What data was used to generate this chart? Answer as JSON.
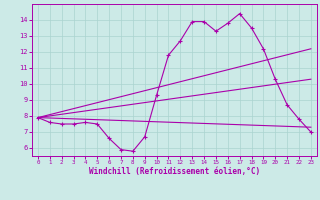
{
  "xlabel": "Windchill (Refroidissement éolien,°C)",
  "background_color": "#cceae7",
  "grid_color": "#aad4d0",
  "line_color": "#aa00aa",
  "xlim": [
    -0.5,
    23.5
  ],
  "ylim": [
    5.5,
    15.0
  ],
  "yticks": [
    6,
    7,
    8,
    9,
    10,
    11,
    12,
    13,
    14
  ],
  "xticks": [
    0,
    1,
    2,
    3,
    4,
    5,
    6,
    7,
    8,
    9,
    10,
    11,
    12,
    13,
    14,
    15,
    16,
    17,
    18,
    19,
    20,
    21,
    22,
    23
  ],
  "line1_x": [
    0,
    1,
    2,
    3,
    4,
    5,
    6,
    7,
    8,
    9,
    10,
    11,
    12,
    13,
    14,
    15,
    16,
    17,
    18,
    19,
    20,
    21,
    22,
    23
  ],
  "line1_y": [
    7.9,
    7.6,
    7.5,
    7.5,
    7.6,
    7.5,
    6.6,
    5.9,
    5.8,
    6.7,
    9.3,
    11.8,
    12.7,
    13.9,
    13.9,
    13.3,
    13.8,
    14.4,
    13.5,
    12.2,
    10.3,
    8.7,
    7.8,
    7.0
  ],
  "line2_x": [
    0,
    23
  ],
  "line2_y": [
    7.9,
    10.3
  ],
  "line3_x": [
    0,
    23
  ],
  "line3_y": [
    7.9,
    12.2
  ],
  "line4_x": [
    0,
    23
  ],
  "line4_y": [
    7.9,
    7.3
  ]
}
